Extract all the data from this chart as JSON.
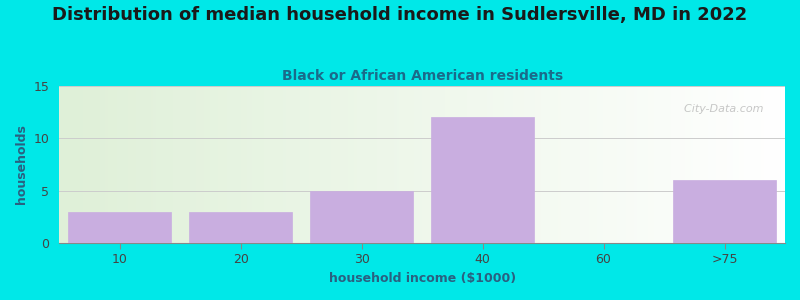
{
  "title": "Distribution of median household income in Sudlersville, MD in 2022",
  "subtitle": "Black or African American residents",
  "xlabel": "household income ($1000)",
  "ylabel": "households",
  "categories": [
    "10",
    "20",
    "30",
    "40",
    "60",
    ">75"
  ],
  "values": [
    3,
    3,
    5,
    12,
    0,
    6
  ],
  "bar_color": "#c9aee0",
  "bar_edgecolor": "#c9aee0",
  "background_color": "#00e8e8",
  "plot_bg_gradient_left": "#dff0d8",
  "plot_bg_gradient_right": "#ffffff",
  "title_color": "#1a1a1a",
  "subtitle_color": "#1a6b8a",
  "axis_label_color": "#2a6080",
  "tick_color": "#444444",
  "ylim": [
    0,
    15
  ],
  "yticks": [
    0,
    5,
    10,
    15
  ],
  "grid_color": "#cccccc",
  "watermark_text": "  City-Data.com",
  "title_fontsize": 13,
  "subtitle_fontsize": 10,
  "label_fontsize": 9
}
